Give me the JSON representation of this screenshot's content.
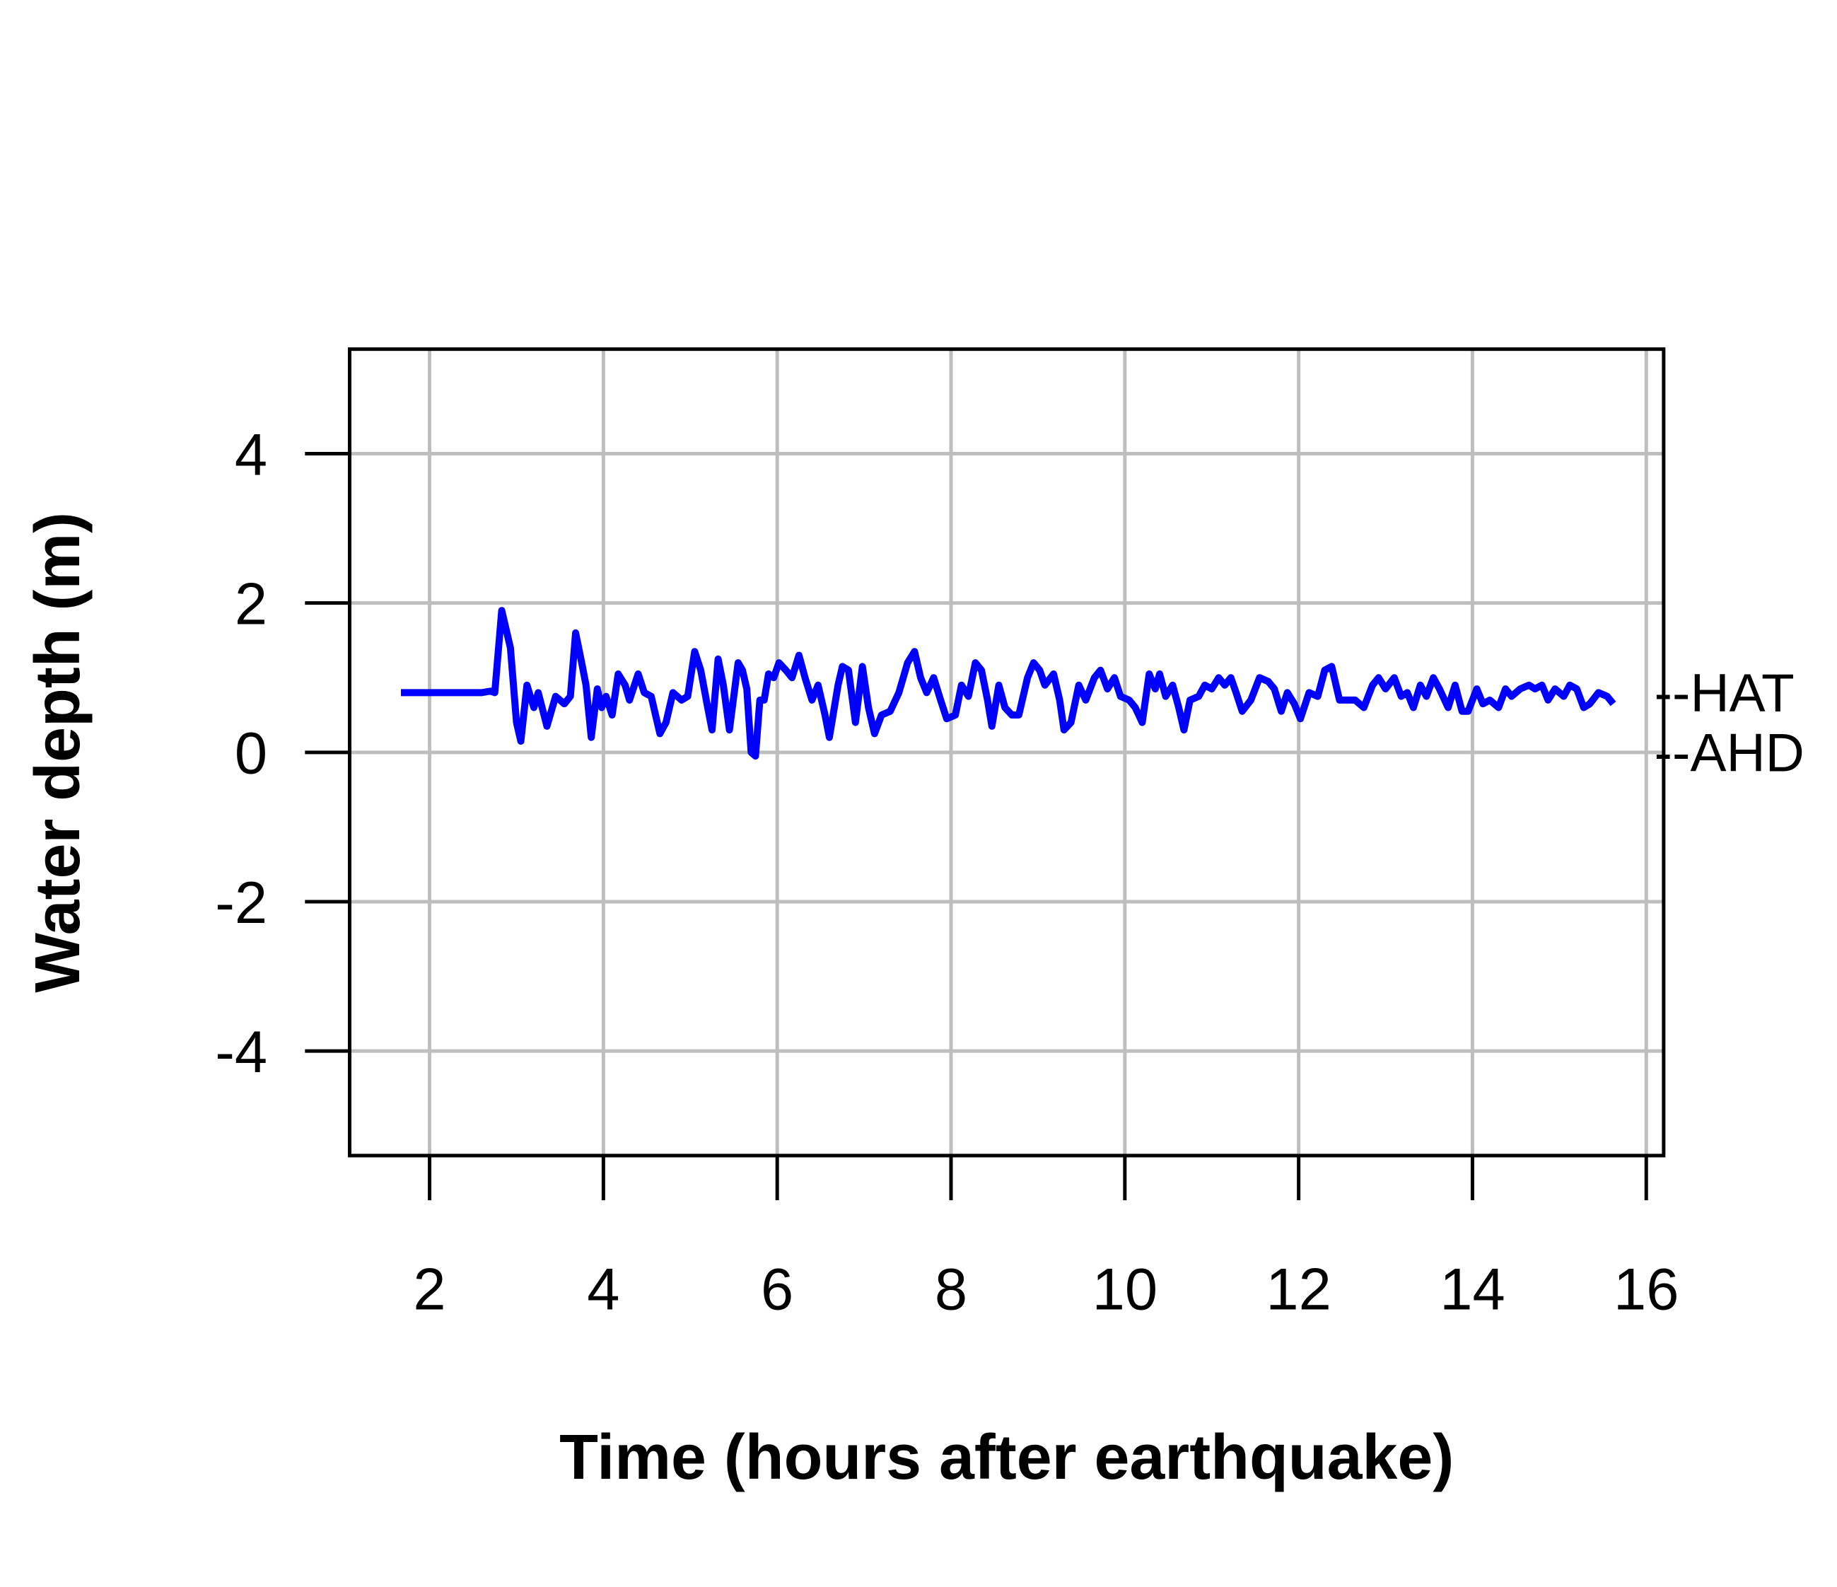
{
  "chart_data": {
    "type": "line",
    "x_label": "Time (hours after earthquake)",
    "y_label": "Water depth (m)",
    "xlim": [
      1.08,
      16.2
    ],
    "xticks": [
      2,
      4,
      6,
      8,
      10,
      12,
      14,
      16
    ],
    "ylim": [
      -5.4,
      5.4
    ],
    "yticks": [
      -4,
      -2,
      0,
      2,
      4
    ],
    "grid": true,
    "annotations": [
      {
        "text": "--HAT",
        "y": 0.8
      },
      {
        "text": "--AHD",
        "y": 0
      }
    ],
    "x": [
      1.67,
      2.6,
      2.7,
      2.75,
      2.83,
      2.87,
      2.93,
      3.0,
      3.05,
      3.12,
      3.2,
      3.25,
      3.35,
      3.45,
      3.55,
      3.62,
      3.68,
      3.75,
      3.8,
      3.86,
      3.93,
      3.98,
      4.03,
      4.1,
      4.17,
      4.25,
      4.3,
      4.4,
      4.47,
      4.55,
      4.65,
      4.72,
      4.8,
      4.9,
      4.97,
      5.05,
      5.12,
      5.2,
      5.25,
      5.32,
      5.38,
      5.45,
      5.55,
      5.6,
      5.65,
      5.7,
      5.75,
      5.8,
      5.85,
      5.9,
      5.96,
      6.02,
      6.1,
      6.17,
      6.25,
      6.32,
      6.4,
      6.47,
      6.55,
      6.6,
      6.7,
      6.75,
      6.82,
      6.9,
      6.98,
      7.05,
      7.12,
      7.2,
      7.3,
      7.4,
      7.5,
      7.58,
      7.65,
      7.72,
      7.8,
      7.88,
      7.95,
      8.05,
      8.12,
      8.2,
      8.28,
      8.35,
      8.42,
      8.47,
      8.55,
      8.62,
      8.7,
      8.78,
      8.88,
      8.95,
      9.02,
      9.08,
      9.18,
      9.25,
      9.3,
      9.38,
      9.47,
      9.55,
      9.65,
      9.72,
      9.8,
      9.88,
      9.95,
      10.05,
      10.12,
      10.2,
      10.28,
      10.35,
      10.4,
      10.47,
      10.55,
      10.62,
      10.68,
      10.75,
      10.85,
      10.92,
      11.0,
      11.08,
      11.15,
      11.22,
      11.28,
      11.35,
      11.45,
      11.55,
      11.65,
      11.72,
      11.8,
      11.87,
      11.95,
      12.02,
      12.12,
      12.22,
      12.3,
      12.38,
      12.47,
      12.55,
      12.65,
      12.75,
      12.85,
      12.92,
      13.0,
      13.1,
      13.18,
      13.25,
      13.32,
      13.4,
      13.47,
      13.55,
      13.62,
      13.72,
      13.8,
      13.88,
      13.95,
      14.05,
      14.12,
      14.2,
      14.3,
      14.38,
      14.45,
      14.55,
      14.65,
      14.72,
      14.8,
      14.87,
      14.95,
      15.05,
      15.12,
      15.2,
      15.28,
      15.35,
      15.45,
      15.55,
      15.62
    ],
    "series": [
      {
        "color": "#0000ff",
        "values": [
          0.8,
          0.8,
          0.82,
          0.8,
          1.9,
          1.7,
          1.4,
          0.4,
          0.15,
          0.9,
          0.6,
          0.8,
          0.35,
          0.75,
          0.65,
          0.75,
          1.6,
          1.2,
          0.9,
          0.2,
          0.85,
          0.6,
          0.75,
          0.5,
          1.05,
          0.9,
          0.7,
          1.05,
          0.8,
          0.75,
          0.25,
          0.4,
          0.8,
          0.7,
          0.75,
          1.35,
          1.1,
          0.6,
          0.3,
          1.25,
          0.9,
          0.3,
          1.2,
          1.1,
          0.85,
          0.0,
          -0.05,
          0.7,
          0.7,
          1.05,
          1.0,
          1.2,
          1.1,
          1.0,
          1.3,
          1.0,
          0.7,
          0.9,
          0.5,
          0.2,
          0.9,
          1.15,
          1.1,
          0.4,
          1.15,
          0.6,
          0.25,
          0.5,
          0.55,
          0.8,
          1.2,
          1.35,
          1.0,
          0.8,
          1.0,
          0.7,
          0.45,
          0.5,
          0.9,
          0.75,
          1.2,
          1.1,
          0.7,
          0.35,
          0.9,
          0.6,
          0.5,
          0.5,
          1.0,
          1.2,
          1.1,
          0.9,
          1.05,
          0.7,
          0.3,
          0.4,
          0.9,
          0.7,
          1.0,
          1.1,
          0.85,
          1.0,
          0.75,
          0.7,
          0.6,
          0.4,
          1.05,
          0.85,
          1.05,
          0.75,
          0.9,
          0.6,
          0.3,
          0.7,
          0.75,
          0.9,
          0.85,
          1.0,
          0.9,
          1.0,
          0.8,
          0.55,
          0.7,
          1.0,
          0.95,
          0.85,
          0.55,
          0.8,
          0.65,
          0.45,
          0.8,
          0.75,
          1.1,
          1.15,
          0.7,
          0.7,
          0.7,
          0.6,
          0.9,
          1.0,
          0.85,
          1.0,
          0.75,
          0.8,
          0.6,
          0.9,
          0.75,
          1.0,
          0.85,
          0.6,
          0.9,
          0.55,
          0.55,
          0.85,
          0.65,
          0.7,
          0.6,
          0.85,
          0.75,
          0.85,
          0.9,
          0.85,
          0.9,
          0.7,
          0.85,
          0.75,
          0.9,
          0.85,
          0.6,
          0.65,
          0.8,
          0.75,
          0.65
        ]
      }
    ]
  }
}
